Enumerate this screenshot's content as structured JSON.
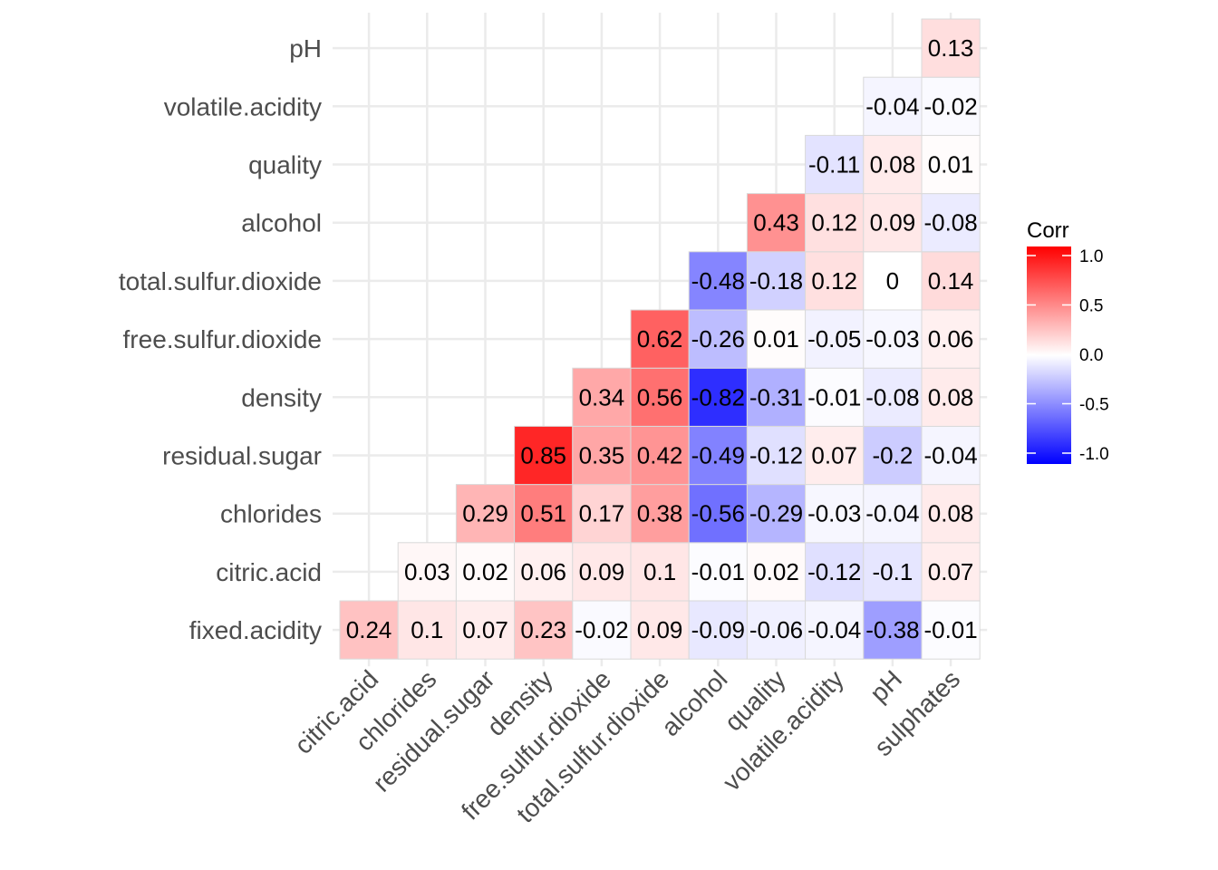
{
  "chart_data": {
    "type": "heatmap",
    "title": "",
    "xlabel": "",
    "ylabel": "",
    "x_categories": [
      "citric.acid",
      "chlorides",
      "residual.sugar",
      "density",
      "free.sulfur.dioxide",
      "total.sulfur.dioxide",
      "alcohol",
      "quality",
      "volatile.acidity",
      "pH",
      "sulphates"
    ],
    "y_categories": [
      "fixed.acidity",
      "citric.acid",
      "chlorides",
      "residual.sugar",
      "density",
      "free.sulfur.dioxide",
      "total.sulfur.dioxide",
      "alcohol",
      "quality",
      "volatile.acidity",
      "pH"
    ],
    "cells": [
      {
        "row": "fixed.acidity",
        "values": [
          0.24,
          0.1,
          0.07,
          0.23,
          -0.02,
          0.09,
          -0.09,
          -0.06,
          -0.04,
          -0.38,
          -0.01
        ]
      },
      {
        "row": "citric.acid",
        "values": [
          null,
          0.03,
          0.02,
          0.06,
          0.09,
          0.1,
          -0.01,
          0.02,
          -0.12,
          -0.1,
          0.07
        ]
      },
      {
        "row": "chlorides",
        "values": [
          null,
          null,
          0.29,
          0.51,
          0.17,
          0.38,
          -0.56,
          -0.29,
          -0.03,
          -0.04,
          0.08
        ]
      },
      {
        "row": "residual.sugar",
        "values": [
          null,
          null,
          null,
          0.85,
          0.35,
          0.42,
          -0.49,
          -0.12,
          0.07,
          -0.2,
          -0.04
        ]
      },
      {
        "row": "density",
        "values": [
          null,
          null,
          null,
          null,
          0.34,
          0.56,
          -0.82,
          -0.31,
          -0.01,
          -0.08,
          0.08
        ]
      },
      {
        "row": "free.sulfur.dioxide",
        "values": [
          null,
          null,
          null,
          null,
          null,
          0.62,
          -0.26,
          0.01,
          -0.05,
          -0.03,
          0.06
        ]
      },
      {
        "row": "total.sulfur.dioxide",
        "values": [
          null,
          null,
          null,
          null,
          null,
          null,
          -0.48,
          -0.18,
          0.12,
          0,
          0.14
        ]
      },
      {
        "row": "alcohol",
        "values": [
          null,
          null,
          null,
          null,
          null,
          null,
          null,
          0.43,
          0.12,
          0.09,
          -0.08
        ]
      },
      {
        "row": "quality",
        "values": [
          null,
          null,
          null,
          null,
          null,
          null,
          null,
          null,
          -0.11,
          0.08,
          0.01
        ]
      },
      {
        "row": "volatile.acidity",
        "values": [
          null,
          null,
          null,
          null,
          null,
          null,
          null,
          null,
          null,
          -0.04,
          -0.02
        ]
      },
      {
        "row": "pH",
        "values": [
          null,
          null,
          null,
          null,
          null,
          null,
          null,
          null,
          null,
          null,
          0.13
        ]
      }
    ],
    "legend": {
      "title": "Corr",
      "ticks": [
        "1.0",
        "0.5",
        "0.0",
        "-0.5",
        "-1.0"
      ],
      "tick_values": [
        1.0,
        0.5,
        0.0,
        -0.5,
        -1.0
      ],
      "range": [
        -1,
        1
      ],
      "low_color": "#0000ff",
      "mid_color": "#ffffff",
      "high_color": "#ff0000",
      "placement": "right"
    },
    "grid": true,
    "grid_color": "#ebebeb",
    "cell_border_color": "#d9d9d9"
  }
}
